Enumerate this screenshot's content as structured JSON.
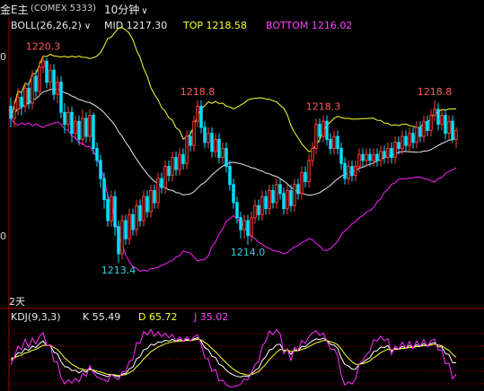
{
  "header": {
    "title": "金E主",
    "code": "(COMEX 5333)",
    "period": "10分钟"
  },
  "boll": {
    "label": "BOLL(26,26,2)",
    "mid": "MID 1217.30",
    "top": "TOP 1218.58",
    "bottom": "BOTTOM 1216.02"
  },
  "kdj": {
    "label": "KDJ(9,3,3)",
    "k": "K 55.49",
    "d": "D 65.72",
    "j": "J 35.02"
  },
  "days_label": "2天",
  "y_axis_ticks": [
    "0",
    "0"
  ],
  "annotations": [
    {
      "text": "1220.3",
      "price": 1220.3,
      "bar": 9,
      "color": "#ff5a5a"
    },
    {
      "text": "1218.8",
      "price": 1218.8,
      "bar": 52,
      "color": "#ff5a5a"
    },
    {
      "text": "1218.3",
      "price": 1218.3,
      "bar": 87,
      "color": "#ff5a5a"
    },
    {
      "text": "1218.8",
      "price": 1218.8,
      "bar": 118,
      "color": "#ff5a5a"
    },
    {
      "text": "1213.4",
      "price": 1213.4,
      "bar": 30,
      "color": "#34d0e0"
    },
    {
      "text": "1214.0",
      "price": 1214.0,
      "bar": 66,
      "color": "#34d0e0"
    }
  ],
  "colors": {
    "up": "#ff3c3c",
    "down": "#00e0ff",
    "mid": "#e8e8e8",
    "top": "#ffff30",
    "bottom": "#ff20ff",
    "k": "#ffffff",
    "d": "#ffff30",
    "j": "#ff30ff",
    "grid": "#a00000"
  },
  "chart_data": {
    "type": "candlestick",
    "ylim": [
      1212.0,
      1221.0
    ],
    "bars": 125,
    "kdj_ylim": [
      -10,
      110
    ],
    "candles": [
      [
        1218.6,
        1218.2,
        1218.9,
        1217.9
      ],
      [
        1218.2,
        1218.5,
        1218.8,
        1217.9
      ],
      [
        1218.5,
        1218.9,
        1219.2,
        1218.3
      ],
      [
        1218.9,
        1218.6,
        1219.1,
        1218.3
      ],
      [
        1218.6,
        1219.2,
        1219.4,
        1218.4
      ],
      [
        1219.2,
        1218.7,
        1219.4,
        1218.5
      ],
      [
        1218.7,
        1219.6,
        1219.8,
        1218.5
      ],
      [
        1219.6,
        1219.1,
        1219.8,
        1218.9
      ],
      [
        1219.1,
        1219.9,
        1220.1,
        1218.9
      ],
      [
        1219.9,
        1220.1,
        1220.3,
        1219.7
      ],
      [
        1220.1,
        1219.4,
        1220.2,
        1219.2
      ],
      [
        1219.4,
        1219.8,
        1220.0,
        1219.1
      ],
      [
        1219.8,
        1219.0,
        1220.0,
        1218.8
      ],
      [
        1219.0,
        1219.4,
        1219.6,
        1218.7
      ],
      [
        1219.4,
        1218.4,
        1219.6,
        1218.2
      ],
      [
        1218.4,
        1218.0,
        1218.7,
        1217.7
      ],
      [
        1218.0,
        1218.4,
        1218.6,
        1217.8
      ],
      [
        1218.4,
        1217.7,
        1218.6,
        1217.4
      ],
      [
        1217.7,
        1218.1,
        1218.3,
        1217.5
      ],
      [
        1218.1,
        1217.5,
        1218.3,
        1217.3
      ],
      [
        1217.5,
        1218.2,
        1218.5,
        1217.3
      ],
      [
        1218.2,
        1217.6,
        1218.4,
        1217.4
      ],
      [
        1217.6,
        1218.3,
        1218.5,
        1217.4
      ],
      [
        1218.3,
        1217.2,
        1218.4,
        1217.0
      ],
      [
        1217.2,
        1216.8,
        1217.4,
        1216.6
      ],
      [
        1216.8,
        1216.2,
        1217.0,
        1215.9
      ],
      [
        1216.2,
        1215.5,
        1216.4,
        1215.2
      ],
      [
        1215.5,
        1214.8,
        1215.7,
        1214.6
      ],
      [
        1214.8,
        1215.6,
        1215.8,
        1214.6
      ],
      [
        1215.6,
        1214.6,
        1215.8,
        1214.3
      ],
      [
        1214.6,
        1213.7,
        1214.8,
        1213.4
      ],
      [
        1213.7,
        1214.8,
        1215.0,
        1213.5
      ],
      [
        1214.8,
        1214.2,
        1215.0,
        1214.0
      ],
      [
        1214.2,
        1215.0,
        1215.2,
        1214.0
      ],
      [
        1215.0,
        1214.5,
        1215.2,
        1214.3
      ],
      [
        1214.5,
        1215.3,
        1215.5,
        1214.3
      ],
      [
        1215.3,
        1214.8,
        1215.5,
        1214.6
      ],
      [
        1214.8,
        1215.6,
        1215.8,
        1214.6
      ],
      [
        1215.6,
        1215.1,
        1215.8,
        1214.9
      ],
      [
        1215.1,
        1215.8,
        1216.0,
        1214.9
      ],
      [
        1215.8,
        1215.4,
        1216.0,
        1215.2
      ],
      [
        1215.4,
        1216.2,
        1216.4,
        1215.2
      ],
      [
        1216.2,
        1215.9,
        1216.4,
        1215.7
      ],
      [
        1215.9,
        1216.6,
        1216.8,
        1215.7
      ],
      [
        1216.6,
        1216.3,
        1216.8,
        1216.1
      ],
      [
        1216.3,
        1216.9,
        1217.1,
        1216.1
      ],
      [
        1216.9,
        1216.5,
        1217.1,
        1216.3
      ],
      [
        1216.5,
        1217.0,
        1217.2,
        1216.3
      ],
      [
        1217.0,
        1216.7,
        1217.2,
        1216.5
      ],
      [
        1216.7,
        1217.6,
        1217.8,
        1216.5
      ],
      [
        1217.6,
        1217.3,
        1217.8,
        1217.1
      ],
      [
        1217.3,
        1218.1,
        1218.3,
        1217.1
      ],
      [
        1218.1,
        1218.6,
        1218.8,
        1217.9
      ],
      [
        1218.6,
        1217.9,
        1218.8,
        1217.7
      ],
      [
        1217.9,
        1217.4,
        1218.1,
        1217.2
      ],
      [
        1217.4,
        1217.7,
        1217.9,
        1217.2
      ],
      [
        1217.7,
        1217.1,
        1217.9,
        1216.9
      ],
      [
        1217.1,
        1217.5,
        1217.7,
        1216.9
      ],
      [
        1217.5,
        1216.9,
        1217.7,
        1216.7
      ],
      [
        1216.9,
        1217.2,
        1217.4,
        1216.7
      ],
      [
        1217.2,
        1216.6,
        1217.4,
        1216.4
      ],
      [
        1216.6,
        1216.0,
        1216.8,
        1215.8
      ],
      [
        1216.0,
        1215.4,
        1216.2,
        1215.2
      ],
      [
        1215.4,
        1214.9,
        1215.6,
        1214.7
      ],
      [
        1214.9,
        1214.5,
        1215.1,
        1214.2
      ],
      [
        1214.5,
        1214.8,
        1215.0,
        1214.2
      ],
      [
        1214.8,
        1214.3,
        1215.0,
        1214.0
      ],
      [
        1214.3,
        1214.9,
        1215.1,
        1214.1
      ],
      [
        1214.9,
        1215.3,
        1215.5,
        1214.7
      ],
      [
        1215.3,
        1215.0,
        1215.5,
        1214.8
      ],
      [
        1215.0,
        1215.6,
        1215.8,
        1214.8
      ],
      [
        1215.6,
        1215.2,
        1215.8,
        1215.0
      ],
      [
        1215.2,
        1215.8,
        1216.0,
        1215.0
      ],
      [
        1215.8,
        1215.4,
        1216.0,
        1215.2
      ],
      [
        1215.4,
        1216.0,
        1216.2,
        1215.2
      ],
      [
        1216.0,
        1215.7,
        1216.2,
        1215.5
      ],
      [
        1215.7,
        1215.2,
        1215.9,
        1215.0
      ],
      [
        1215.2,
        1215.8,
        1216.0,
        1215.0
      ],
      [
        1215.8,
        1215.3,
        1216.0,
        1215.1
      ],
      [
        1215.3,
        1216.0,
        1216.2,
        1215.1
      ],
      [
        1216.0,
        1215.7,
        1216.2,
        1215.5
      ],
      [
        1215.7,
        1216.4,
        1216.6,
        1215.5
      ],
      [
        1216.4,
        1216.1,
        1216.6,
        1215.9
      ],
      [
        1216.1,
        1216.8,
        1217.0,
        1215.9
      ],
      [
        1216.8,
        1217.2,
        1217.4,
        1216.6
      ],
      [
        1217.2,
        1218.0,
        1218.2,
        1217.0
      ],
      [
        1218.0,
        1217.6,
        1218.2,
        1217.4
      ],
      [
        1217.6,
        1218.1,
        1218.3,
        1217.4
      ],
      [
        1218.1,
        1217.5,
        1218.3,
        1217.3
      ],
      [
        1217.5,
        1217.2,
        1217.7,
        1217.0
      ],
      [
        1217.2,
        1217.6,
        1217.8,
        1217.0
      ],
      [
        1217.6,
        1217.2,
        1217.8,
        1217.0
      ],
      [
        1217.2,
        1216.7,
        1217.4,
        1216.5
      ],
      [
        1216.7,
        1216.2,
        1216.9,
        1216.0
      ],
      [
        1216.2,
        1216.6,
        1216.8,
        1216.0
      ],
      [
        1216.6,
        1216.3,
        1216.8,
        1216.1
      ],
      [
        1216.3,
        1216.6,
        1216.8,
        1216.1
      ],
      [
        1216.6,
        1217.0,
        1217.2,
        1216.4
      ],
      [
        1217.0,
        1216.8,
        1217.2,
        1216.6
      ],
      [
        1216.8,
        1217.0,
        1217.2,
        1216.6
      ],
      [
        1217.0,
        1216.8,
        1217.2,
        1216.6
      ],
      [
        1216.8,
        1217.0,
        1217.2,
        1216.6
      ],
      [
        1217.0,
        1216.8,
        1217.2,
        1216.6
      ],
      [
        1216.8,
        1217.1,
        1217.3,
        1216.6
      ],
      [
        1217.1,
        1216.9,
        1217.3,
        1216.7
      ],
      [
        1216.9,
        1217.2,
        1217.4,
        1216.7
      ],
      [
        1217.2,
        1216.9,
        1217.4,
        1216.7
      ],
      [
        1216.9,
        1217.4,
        1217.6,
        1216.7
      ],
      [
        1217.4,
        1217.2,
        1217.6,
        1217.0
      ],
      [
        1217.2,
        1217.6,
        1217.8,
        1217.0
      ],
      [
        1217.6,
        1217.3,
        1217.8,
        1217.1
      ],
      [
        1217.3,
        1217.7,
        1217.9,
        1217.1
      ],
      [
        1217.7,
        1217.4,
        1217.9,
        1217.2
      ],
      [
        1217.4,
        1217.9,
        1218.1,
        1217.2
      ],
      [
        1217.9,
        1217.6,
        1218.1,
        1217.4
      ],
      [
        1217.6,
        1218.1,
        1218.3,
        1217.4
      ],
      [
        1218.1,
        1217.8,
        1218.3,
        1217.6
      ],
      [
        1217.8,
        1218.3,
        1218.5,
        1217.6
      ],
      [
        1218.3,
        1218.5,
        1218.8,
        1218.1
      ],
      [
        1218.5,
        1218.0,
        1218.7,
        1217.8
      ],
      [
        1218.0,
        1218.3,
        1218.5,
        1217.8
      ],
      [
        1218.3,
        1217.7,
        1218.5,
        1217.5
      ],
      [
        1217.7,
        1218.1,
        1218.3,
        1217.5
      ],
      [
        1218.1,
        1217.5,
        1218.3,
        1217.4
      ],
      [
        1217.5,
        1217.8,
        1217.9,
        1217.2
      ]
    ],
    "bollinger": {
      "window": 26,
      "width": 2,
      "mid_last": 1217.3,
      "top_last": 1218.58,
      "bottom_last": 1216.02
    },
    "kdj": {
      "n": 9,
      "m1": 3,
      "m2": 3,
      "k_last": 55.49,
      "d_last": 65.72,
      "j_last": 35.02
    }
  }
}
